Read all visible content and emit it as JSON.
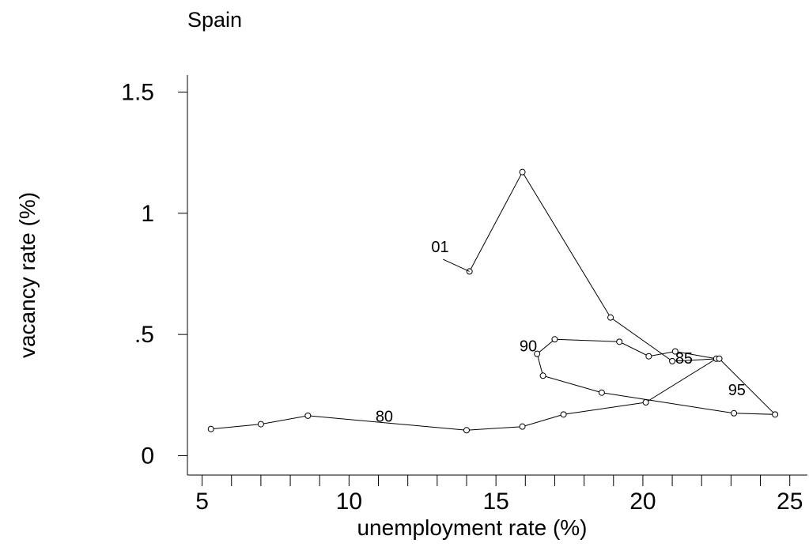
{
  "chart_data": {
    "type": "line",
    "title": "Spain",
    "xlabel": "unemployment rate (%)",
    "ylabel": "vacancy rate (%)",
    "xlim": [
      4.5,
      25.6
    ],
    "ylim": [
      -0.08,
      1.57
    ],
    "x_ticks": [
      5,
      10,
      15,
      20,
      25
    ],
    "x_tick_labels": [
      "5",
      "10",
      "15",
      "20",
      "25"
    ],
    "y_ticks": [
      0,
      0.5,
      1,
      1.5
    ],
    "y_tick_labels": [
      "0",
      ".5",
      "1",
      "1.5"
    ],
    "grid": false,
    "series": [
      {
        "x": [
          5.3,
          7.0,
          8.6,
          14.0,
          15.9,
          17.3,
          20.1,
          22.5,
          21.1,
          20.2,
          19.2,
          17.0,
          16.4,
          16.6,
          18.6,
          23.1,
          24.5,
          22.6,
          21.0,
          18.9,
          15.9,
          14.1
        ],
        "y": [
          0.11,
          0.13,
          0.165,
          0.105,
          0.12,
          0.17,
          0.22,
          0.4,
          0.43,
          0.41,
          0.47,
          0.48,
          0.42,
          0.33,
          0.26,
          0.175,
          0.17,
          0.4,
          0.39,
          0.57,
          1.17,
          0.76
        ]
      }
    ],
    "annotations": [
      {
        "text": "80",
        "x": 11.2,
        "y": 0.14
      },
      {
        "text": "85",
        "x": 21.4,
        "y": 0.38
      },
      {
        "text": "90",
        "x": 16.1,
        "y": 0.43
      },
      {
        "text": "95",
        "x": 23.2,
        "y": 0.25
      },
      {
        "text": "01",
        "x": 13.1,
        "y": 0.84
      }
    ]
  }
}
